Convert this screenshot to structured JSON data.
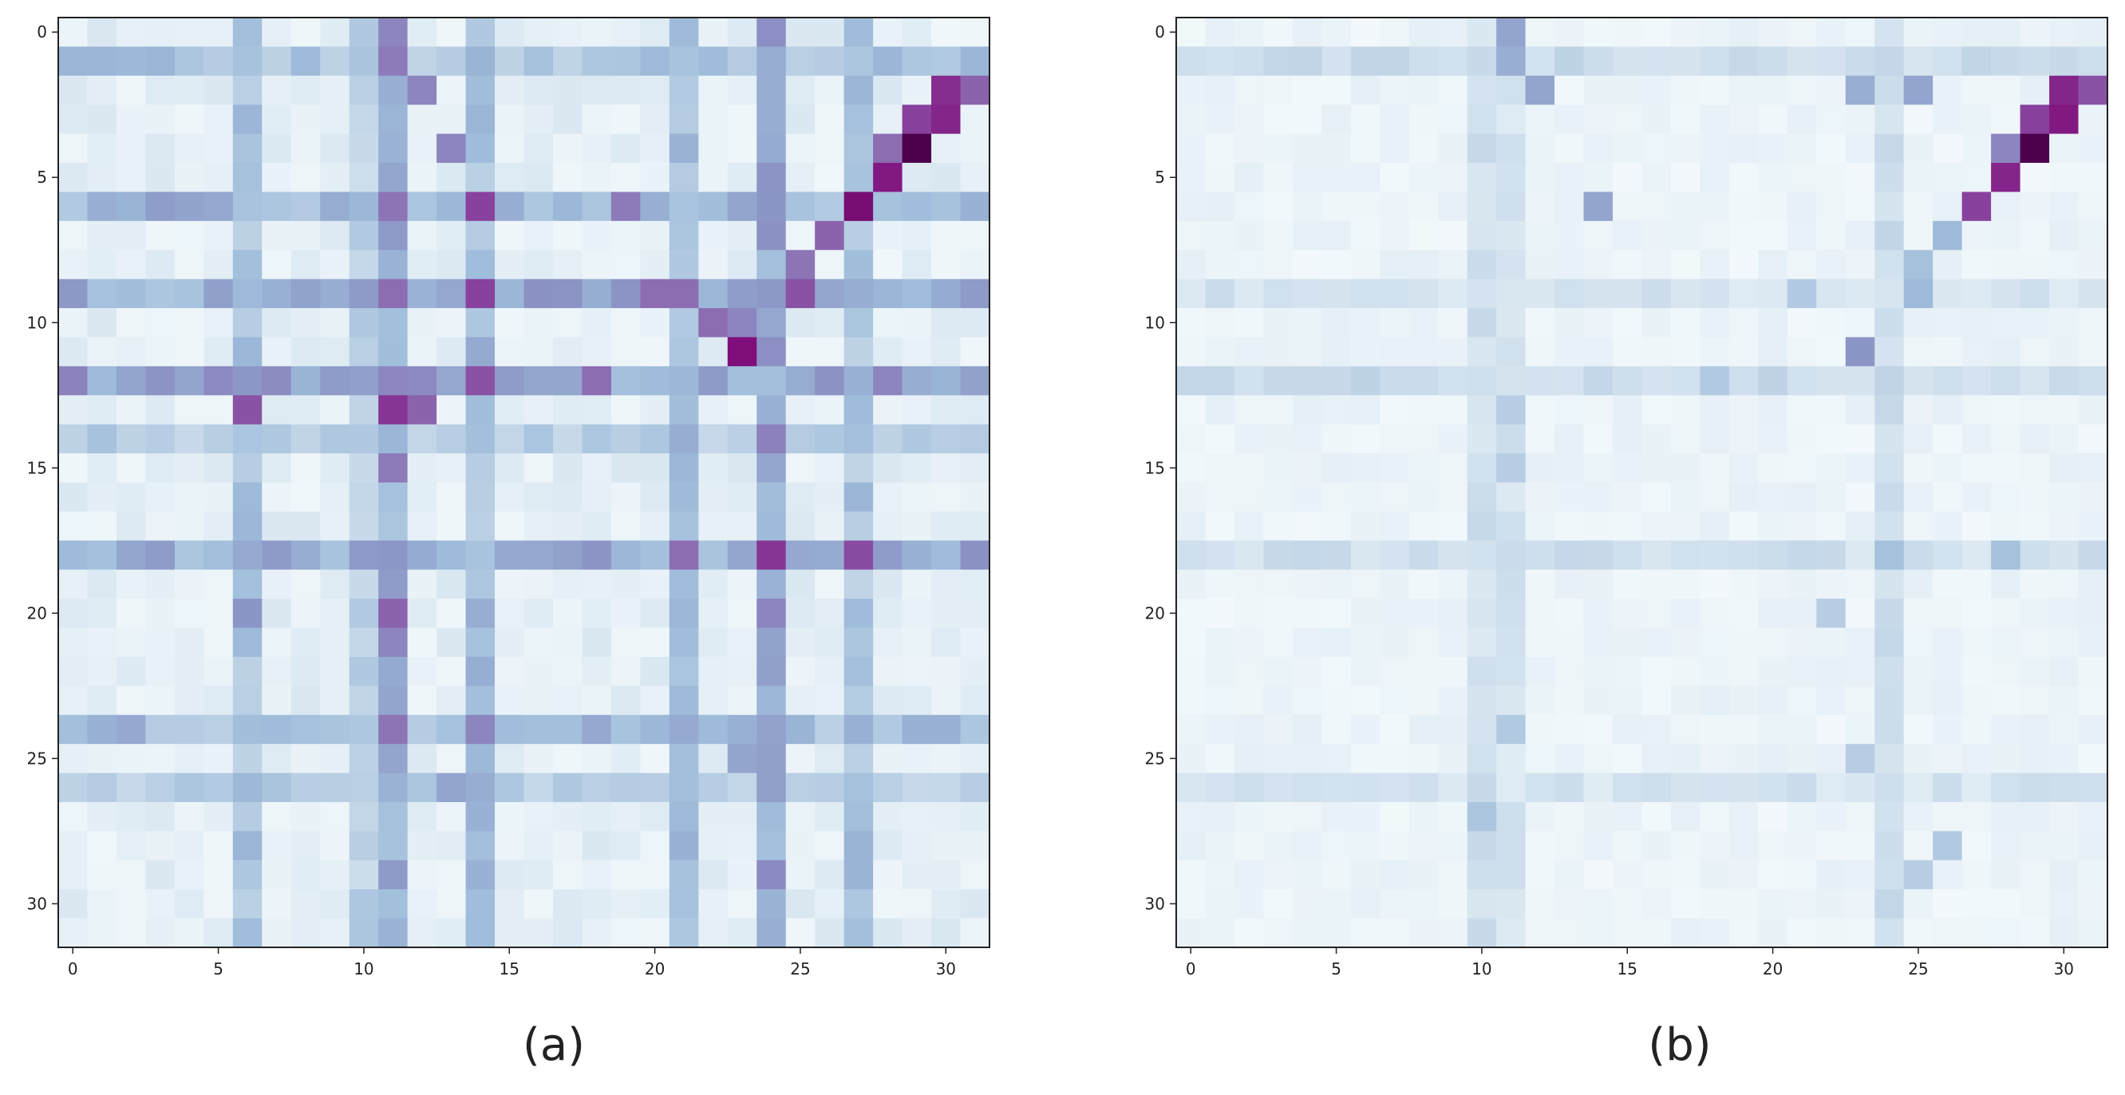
{
  "chart_data": [
    {
      "type": "heatmap",
      "caption": "(a)",
      "rows": 32,
      "cols": 32,
      "x_ticks": [
        "0",
        "5",
        "10",
        "15",
        "20",
        "25",
        "30"
      ],
      "y_ticks": [
        "0",
        "5",
        "10",
        "15",
        "20",
        "25",
        "30"
      ],
      "colormap": "BuPu",
      "colormap_stops": [
        "#f7fcfd",
        "#e0ecf4",
        "#bfd3e6",
        "#9ebcda",
        "#8c96c6",
        "#8c6bb1",
        "#88419d",
        "#810f7c",
        "#4d004b"
      ],
      "value_range": [
        0,
        1
      ],
      "notes": "Attention-style map; values estimated from color intensity (0 = near white, 1 = darkest purple).",
      "base_level": 0.12,
      "bands": [
        {
          "axis": "col",
          "index": 11,
          "value": 0.45
        },
        {
          "axis": "col",
          "index": 14,
          "value": 0.38
        },
        {
          "axis": "col",
          "index": 24,
          "value": 0.5
        },
        {
          "axis": "col",
          "index": 6,
          "value": 0.35
        },
        {
          "axis": "col",
          "index": 21,
          "value": 0.4
        },
        {
          "axis": "col",
          "index": 27,
          "value": 0.35
        },
        {
          "axis": "col",
          "index": 10,
          "value": 0.28
        },
        {
          "axis": "row",
          "index": 12,
          "value": 0.5
        },
        {
          "axis": "row",
          "index": 9,
          "value": 0.45
        },
        {
          "axis": "row",
          "index": 6,
          "value": 0.42
        },
        {
          "axis": "row",
          "index": 18,
          "value": 0.45
        },
        {
          "axis": "row",
          "index": 24,
          "value": 0.38
        },
        {
          "axis": "row",
          "index": 1,
          "value": 0.35
        },
        {
          "axis": "row",
          "index": 26,
          "value": 0.3
        },
        {
          "axis": "row",
          "index": 14,
          "value": 0.3
        }
      ],
      "cells": [
        [
          0,
          11,
          0.55
        ],
        [
          1,
          11,
          0.58
        ],
        [
          2,
          12,
          0.55
        ],
        [
          2,
          30,
          0.8
        ],
        [
          2,
          31,
          0.65
        ],
        [
          3,
          29,
          0.75
        ],
        [
          3,
          30,
          0.82
        ],
        [
          4,
          13,
          0.55
        ],
        [
          4,
          28,
          0.62
        ],
        [
          4,
          29,
          1.0
        ],
        [
          5,
          28,
          0.85
        ],
        [
          6,
          27,
          0.9
        ],
        [
          6,
          14,
          0.75
        ],
        [
          6,
          11,
          0.6
        ],
        [
          6,
          19,
          0.58
        ],
        [
          7,
          26,
          0.65
        ],
        [
          8,
          25,
          0.6
        ],
        [
          9,
          14,
          0.75
        ],
        [
          9,
          25,
          0.7
        ],
        [
          9,
          11,
          0.62
        ],
        [
          9,
          20,
          0.62
        ],
        [
          9,
          21,
          0.62
        ],
        [
          10,
          22,
          0.62
        ],
        [
          10,
          23,
          0.55
        ],
        [
          11,
          23,
          0.88
        ],
        [
          12,
          14,
          0.7
        ],
        [
          12,
          18,
          0.62
        ],
        [
          13,
          6,
          0.7
        ],
        [
          13,
          11,
          0.78
        ],
        [
          13,
          12,
          0.65
        ],
        [
          15,
          11,
          0.58
        ],
        [
          18,
          24,
          0.78
        ],
        [
          18,
          27,
          0.72
        ],
        [
          18,
          21,
          0.62
        ],
        [
          20,
          11,
          0.65
        ],
        [
          20,
          24,
          0.55
        ],
        [
          20,
          6,
          0.5
        ],
        [
          21,
          11,
          0.55
        ],
        [
          24,
          11,
          0.6
        ],
        [
          24,
          14,
          0.55
        ],
        [
          25,
          23,
          0.45
        ],
        [
          26,
          13,
          0.45
        ]
      ]
    },
    {
      "type": "heatmap",
      "caption": "(b)",
      "rows": 32,
      "cols": 32,
      "x_ticks": [
        "0",
        "5",
        "10",
        "15",
        "20",
        "25",
        "30"
      ],
      "y_ticks": [
        "0",
        "5",
        "10",
        "15",
        "20",
        "25",
        "30"
      ],
      "colormap": "BuPu",
      "colormap_stops": [
        "#f7fcfd",
        "#e0ecf4",
        "#bfd3e6",
        "#9ebcda",
        "#8c96c6",
        "#8c6bb1",
        "#88419d",
        "#810f7c",
        "#4d004b"
      ],
      "value_range": [
        0,
        1
      ],
      "notes": "Same map with weaker off-diagonal structure; values estimated from color intensity.",
      "base_level": 0.08,
      "bands": [
        {
          "axis": "col",
          "index": 24,
          "value": 0.22
        },
        {
          "axis": "col",
          "index": 10,
          "value": 0.2
        },
        {
          "axis": "row",
          "index": 12,
          "value": 0.22
        },
        {
          "axis": "row",
          "index": 18,
          "value": 0.2
        },
        {
          "axis": "row",
          "index": 1,
          "value": 0.22
        },
        {
          "axis": "row",
          "index": 9,
          "value": 0.18
        },
        {
          "axis": "row",
          "index": 26,
          "value": 0.18
        },
        {
          "axis": "col",
          "index": 11,
          "value": 0.18
        }
      ],
      "cells": [
        [
          0,
          11,
          0.45
        ],
        [
          1,
          11,
          0.42
        ],
        [
          2,
          12,
          0.45
        ],
        [
          2,
          23,
          0.42
        ],
        [
          2,
          25,
          0.45
        ],
        [
          2,
          30,
          0.82
        ],
        [
          2,
          31,
          0.7
        ],
        [
          3,
          29,
          0.75
        ],
        [
          3,
          30,
          0.85
        ],
        [
          4,
          28,
          0.55
        ],
        [
          4,
          29,
          1.0
        ],
        [
          5,
          28,
          0.82
        ],
        [
          6,
          27,
          0.75
        ],
        [
          6,
          14,
          0.45
        ],
        [
          7,
          26,
          0.38
        ],
        [
          8,
          25,
          0.35
        ],
        [
          9,
          25,
          0.38
        ],
        [
          9,
          21,
          0.3
        ],
        [
          11,
          23,
          0.5
        ],
        [
          12,
          18,
          0.3
        ],
        [
          13,
          11,
          0.28
        ],
        [
          15,
          11,
          0.28
        ],
        [
          18,
          28,
          0.35
        ],
        [
          18,
          24,
          0.35
        ],
        [
          20,
          22,
          0.28
        ],
        [
          24,
          11,
          0.3
        ],
        [
          25,
          23,
          0.28
        ],
        [
          27,
          10,
          0.32
        ],
        [
          28,
          26,
          0.3
        ],
        [
          29,
          25,
          0.28
        ]
      ]
    }
  ]
}
